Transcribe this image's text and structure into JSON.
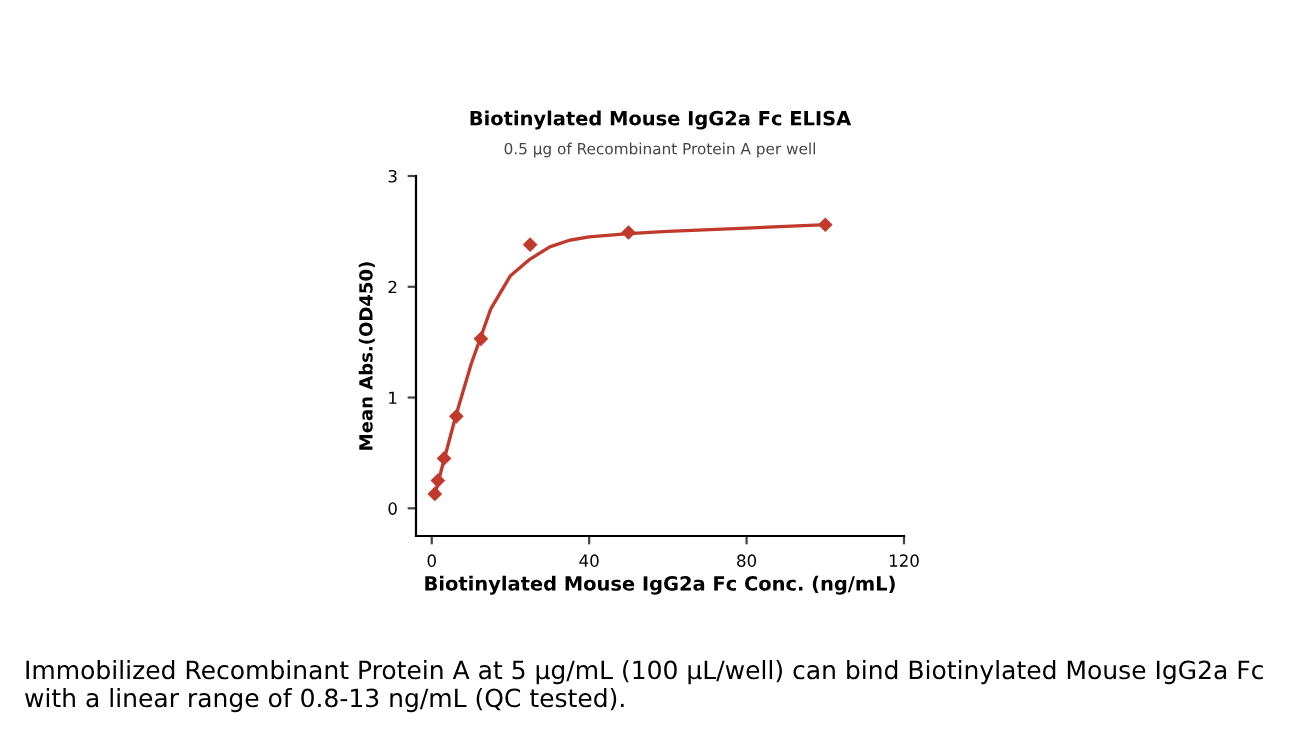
{
  "chart_data": {
    "type": "scatter",
    "title": "Biotinylated Mouse IgG2a Fc ELISA",
    "subtitle": "0.5 μg of Recombinant Protein A per well",
    "xlabel": "Biotinylated Mouse IgG2a Fc Conc. (ng/mL)",
    "ylabel": "Mean Abs.(OD450)",
    "series": [
      {
        "marker": "diamond",
        "color": "#c0392b",
        "x": [
          0.78,
          1.56,
          3.125,
          6.25,
          12.5,
          25,
          50,
          100
        ],
        "values": [
          0.13,
          0.25,
          0.45,
          0.83,
          1.53,
          2.38,
          2.49,
          2.56
        ]
      },
      {
        "type": "line",
        "color": "#c0392b",
        "x": [
          0.78,
          3,
          6,
          10,
          15,
          20,
          25,
          30,
          35,
          40,
          50,
          60,
          80,
          100
        ],
        "values": [
          0.12,
          0.42,
          0.82,
          1.3,
          1.8,
          2.1,
          2.25,
          2.36,
          2.42,
          2.45,
          2.48,
          2.5,
          2.53,
          2.56
        ]
      }
    ],
    "xlim": [
      -4,
      120
    ],
    "ylim": [
      -0.25,
      3
    ],
    "xticks": [
      0,
      40,
      80,
      120
    ],
    "yticks": [
      0,
      1,
      2,
      3
    ],
    "grid": false,
    "legend": false,
    "annotations": [
      "Immobilized Recombinant Protein A at 5 μg/mL (100 μL/well) can bind Biotinylated Mouse IgG2a Fc with a linear range of 0.8-13 ng/mL (QC tested)."
    ]
  }
}
